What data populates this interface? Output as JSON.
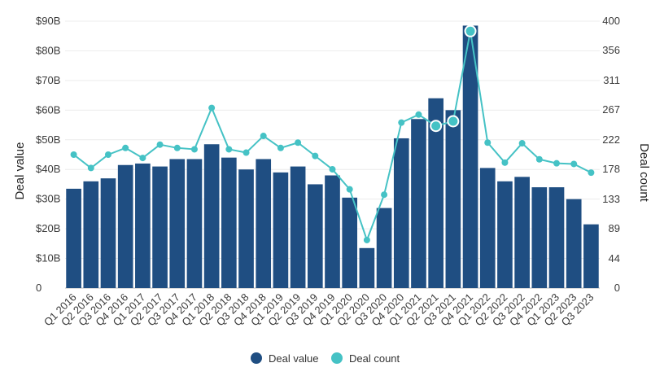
{
  "chart_data": {
    "type": "bar",
    "categories": [
      "Q1 2016",
      "Q2 2016",
      "Q3 2016",
      "Q4 2016",
      "Q1 2017",
      "Q2 2017",
      "Q3 2017",
      "Q4 2017",
      "Q1 2018",
      "Q2 2018",
      "Q3 2018",
      "Q4 2018",
      "Q1 2019",
      "Q2 2019",
      "Q3 2019",
      "Q4 2019",
      "Q1 2020",
      "Q2 2020",
      "Q3 2020",
      "Q4 2020",
      "Q1 2021",
      "Q2 2021",
      "Q3 2021",
      "Q4 2021",
      "Q1 2022",
      "Q2 2022",
      "Q3 2022",
      "Q4 2022",
      "Q1 2023",
      "Q2 2023",
      "Q3 2023"
    ],
    "series": [
      {
        "name": "Deal value",
        "type": "bar",
        "axis": "left",
        "color": "#1f4e82",
        "values": [
          33.5,
          36,
          37,
          41.5,
          42,
          41,
          43.5,
          43.5,
          48.5,
          44,
          40,
          43.5,
          39,
          41,
          35,
          38,
          30.5,
          13.5,
          27,
          50.5,
          57,
          64,
          60,
          88.5,
          40.5,
          36,
          37.5,
          34,
          34,
          30,
          21.5
        ]
      },
      {
        "name": "Deal count",
        "type": "line",
        "axis": "right",
        "color": "#45c2c5",
        "values": [
          200,
          180,
          200,
          210,
          195,
          215,
          210,
          208,
          270,
          208,
          203,
          228,
          210,
          218,
          198,
          178,
          148,
          72,
          140,
          248,
          260,
          243,
          250,
          385,
          218,
          188,
          217,
          193,
          187,
          186,
          173
        ],
        "highlighted_indices": [
          21,
          22,
          23
        ]
      }
    ],
    "y_left": {
      "title": "Deal value",
      "ylim": [
        0,
        90
      ],
      "ticks": [
        0,
        10,
        20,
        30,
        40,
        50,
        60,
        70,
        80,
        90
      ],
      "tick_labels": [
        "0",
        "$10B",
        "$20B",
        "$30B",
        "$40B",
        "$50B",
        "$60B",
        "$70B",
        "$80B",
        "$90B"
      ]
    },
    "y_right": {
      "title": "Deal count",
      "ylim": [
        0,
        400
      ],
      "ticks": [
        0,
        44,
        89,
        133,
        178,
        222,
        267,
        311,
        356,
        400
      ],
      "tick_labels": [
        "0",
        "44",
        "89",
        "133",
        "178",
        "222",
        "267",
        "311",
        "356",
        "400"
      ]
    },
    "grid": true,
    "legend": {
      "position": "bottom-center",
      "items": [
        {
          "label": "Deal value",
          "color": "#1f4e82"
        },
        {
          "label": "Deal count",
          "color": "#45c2c5"
        }
      ]
    }
  }
}
